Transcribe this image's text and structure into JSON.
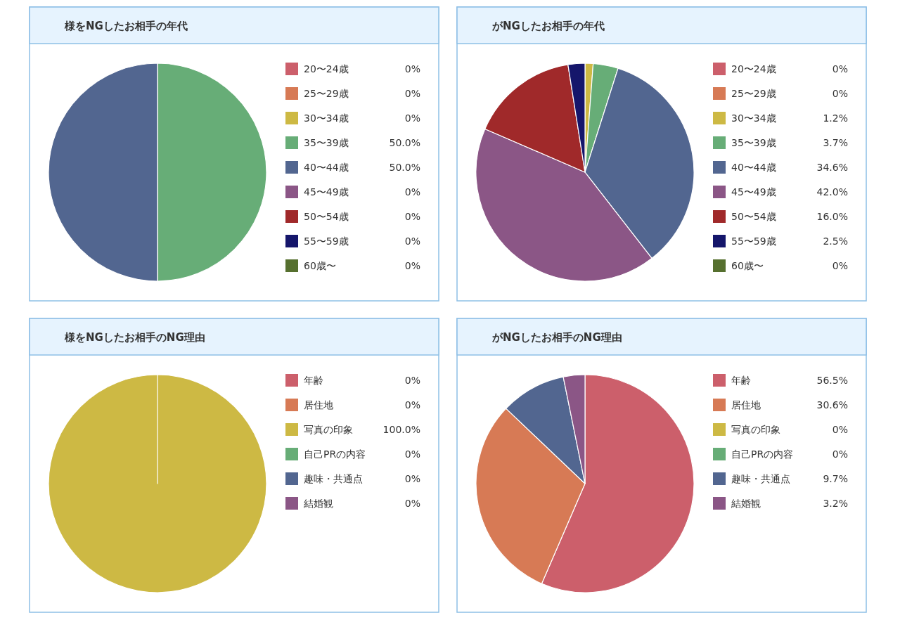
{
  "chart_data": [
    {
      "type": "pie",
      "title": "様をNGしたお相手の年代",
      "legend": "right",
      "categories": [
        "20〜24歳",
        "25〜29歳",
        "30〜34歳",
        "35〜39歳",
        "40〜44歳",
        "45〜49歳",
        "50〜54歳",
        "55〜59歳",
        "60歳〜"
      ],
      "values": [
        0,
        0,
        0,
        50,
        50,
        0,
        0,
        0,
        0
      ],
      "value_labels": [
        "0%",
        "0%",
        "0%",
        "50.0%",
        "50.0%",
        "0%",
        "0%",
        "0%",
        "0%"
      ],
      "colors": [
        "#cc5f6b",
        "#d77a55",
        "#cdb944",
        "#67ad77",
        "#526690",
        "#8b5686",
        "#a0292a",
        "#15166b",
        "#56702f"
      ]
    },
    {
      "type": "pie",
      "title": "がNGしたお相手の年代",
      "legend": "right",
      "categories": [
        "20〜24歳",
        "25〜29歳",
        "30〜34歳",
        "35〜39歳",
        "40〜44歳",
        "45〜49歳",
        "50〜54歳",
        "55〜59歳",
        "60歳〜"
      ],
      "values": [
        0,
        0,
        1.2,
        3.7,
        34.6,
        42.0,
        16.0,
        2.5,
        0
      ],
      "value_labels": [
        "0%",
        "0%",
        "1.2%",
        "3.7%",
        "34.6%",
        "42.0%",
        "16.0%",
        "2.5%",
        "0%"
      ],
      "colors": [
        "#cc5f6b",
        "#d77a55",
        "#cdb944",
        "#67ad77",
        "#526690",
        "#8b5686",
        "#a0292a",
        "#15166b",
        "#56702f"
      ]
    },
    {
      "type": "pie",
      "title": "様をNGしたお相手のNG理由",
      "legend": "right",
      "categories": [
        "年齢",
        "居住地",
        "写真の印象",
        "自己PRの内容",
        "趣味・共通点",
        "結婚観"
      ],
      "values": [
        0,
        0,
        100,
        0,
        0,
        0
      ],
      "value_labels": [
        "0%",
        "0%",
        "100.0%",
        "0%",
        "0%",
        "0%"
      ],
      "colors": [
        "#cc5f6b",
        "#d77a55",
        "#cdb944",
        "#67ad77",
        "#526690",
        "#8b5686"
      ]
    },
    {
      "type": "pie",
      "title": "がNGしたお相手のNG理由",
      "legend": "right",
      "categories": [
        "年齢",
        "居住地",
        "写真の印象",
        "自己PRの内容",
        "趣味・共通点",
        "結婚観"
      ],
      "values": [
        56.5,
        30.6,
        0,
        0,
        9.7,
        3.2
      ],
      "value_labels": [
        "56.5%",
        "30.6%",
        "0%",
        "0%",
        "9.7%",
        "3.2%"
      ],
      "colors": [
        "#cc5f6b",
        "#d77a55",
        "#cdb944",
        "#67ad77",
        "#526690",
        "#8b5686"
      ]
    }
  ]
}
